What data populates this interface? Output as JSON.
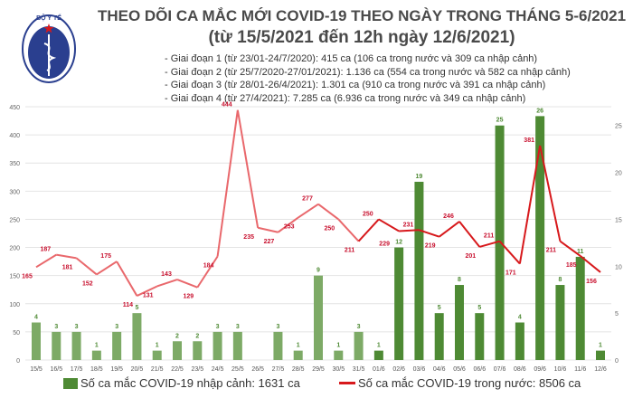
{
  "header": {
    "logo_text": "BỘ Y TẾ",
    "logo_subtext": "MINISTRY OF HEALTH",
    "title_line1": "THEO DÕI CA MẮC MỚI COVID-19 THEO NGÀY TRONG THÁNG 5-6/2021",
    "title_line2": "(từ 15/5/2021 đến 12h ngày 12/6/2021)",
    "phases": [
      "- Giai đoạn 1 (từ 23/01-24/7/2020): 415 ca (106 ca trong nước và 309 ca nhập cảnh)",
      "- Giai đoạn 2 (từ 25/7/2020-27/01/2021): 1.136 ca (554 ca trong nước và 582 ca nhập cảnh)",
      "- Giai đoạn 3 (từ 28/01-26/4/2021): 1.301 ca (910 ca trong nước và 391 ca nhập cảnh)",
      "- Giai đoạn 4 (từ 27/4/2021): 7.285 ca (6.936 ca trong nước và 349 ca nhập cảnh)"
    ]
  },
  "chart_data": {
    "type": "bar+line",
    "categories": [
      "15/5",
      "16/5",
      "17/5",
      "18/5",
      "19/5",
      "20/5",
      "21/5",
      "22/5",
      "23/5",
      "24/5",
      "25/5",
      "26/5",
      "27/5",
      "28/5",
      "29/5",
      "30/5",
      "31/5",
      "01/6",
      "02/6",
      "03/6",
      "04/6",
      "05/6",
      "06/6",
      "07/6",
      "08/6",
      "09/6",
      "10/6",
      "11/6",
      "12/6"
    ],
    "series": [
      {
        "name": "Số ca mắc COVID-19 nhập cảnh: 1631 ca",
        "type": "bar",
        "axis": "right",
        "color": "#4e8a34",
        "color_early": "#7daa66",
        "values": [
          4,
          3,
          3,
          1,
          3,
          5,
          1,
          2,
          2,
          3,
          3,
          0,
          3,
          1,
          9,
          1,
          3,
          1,
          12,
          19,
          5,
          8,
          5,
          25,
          4,
          26,
          8,
          11,
          1
        ]
      },
      {
        "name": "Số ca mắc COVID-19 trong nước: 8506 ca",
        "type": "line",
        "axis": "left",
        "color": "#d7191c",
        "color_early": "#e9686c",
        "values": [
          165,
          187,
          181,
          152,
          175,
          114,
          131,
          143,
          129,
          184,
          444,
          235,
          227,
          253,
          277,
          250,
          211,
          250,
          229,
          231,
          219,
          246,
          201,
          211,
          171,
          381,
          211,
          185,
          156
        ]
      }
    ],
    "y_left": {
      "range": [
        0,
        450
      ],
      "ticks": [
        0,
        50,
        100,
        150,
        200,
        250,
        300,
        350,
        400,
        450
      ]
    },
    "y_right": {
      "range": [
        0,
        27
      ],
      "ticks": [
        0,
        5,
        10,
        15,
        20,
        25
      ]
    },
    "grid": true,
    "legend": "bottom"
  }
}
